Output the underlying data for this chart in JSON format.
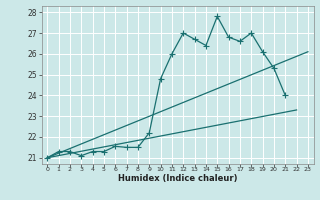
{
  "title": "",
  "xlabel": "Humidex (Indice chaleur)",
  "bg_color": "#cce8e8",
  "grid_color": "#ffffff",
  "line_color": "#1a7070",
  "xlim": [
    -0.5,
    23.5
  ],
  "ylim": [
    20.7,
    28.3
  ],
  "xticks": [
    0,
    1,
    2,
    3,
    4,
    5,
    6,
    7,
    8,
    9,
    10,
    11,
    12,
    13,
    14,
    15,
    16,
    17,
    18,
    19,
    20,
    21,
    22,
    23
  ],
  "yticks": [
    21,
    22,
    23,
    24,
    25,
    26,
    27,
    28
  ],
  "series1_x": [
    0,
    1,
    2,
    3,
    4,
    5,
    6,
    7,
    8,
    9,
    10,
    11,
    12,
    13,
    14,
    15,
    16,
    17,
    18,
    19,
    20,
    21
  ],
  "series1_y": [
    21.0,
    21.3,
    21.3,
    21.1,
    21.3,
    21.3,
    21.55,
    21.5,
    21.5,
    22.2,
    24.8,
    26.0,
    27.0,
    26.7,
    26.4,
    27.8,
    26.8,
    26.6,
    27.0,
    26.1,
    25.3,
    24.0
  ],
  "series2_x": [
    0,
    23
  ],
  "series2_y": [
    21.0,
    26.1
  ],
  "series3_x": [
    0,
    22
  ],
  "series3_y": [
    21.0,
    23.3
  ],
  "marker": "+",
  "markersize": 4,
  "lw": 0.9
}
